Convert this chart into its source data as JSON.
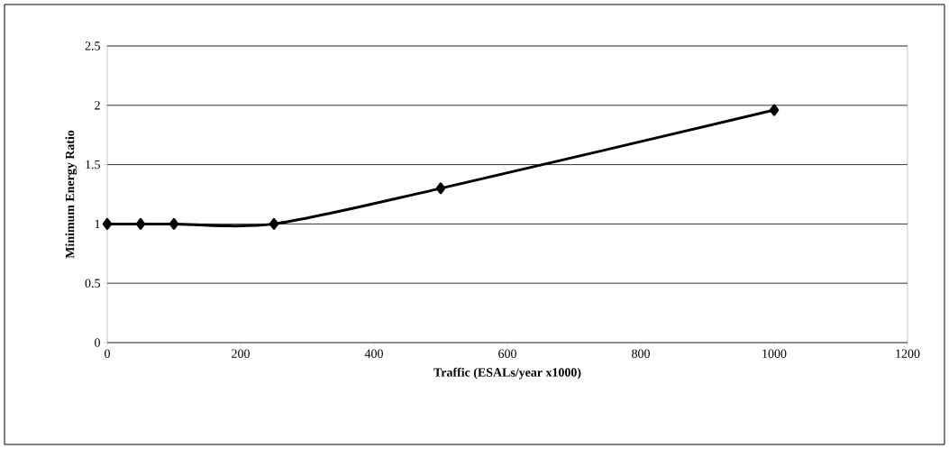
{
  "chart_data": {
    "type": "line",
    "xlabel": "Traffic (ESALs/year x1000)",
    "ylabel": "Minimum Energy Ratio",
    "x": [
      0,
      50,
      100,
      250,
      500,
      1000
    ],
    "values": [
      1,
      1,
      1,
      1,
      1.3,
      1.96
    ],
    "color": "#000000",
    "xlim": [
      0,
      1200
    ],
    "ylim": [
      0,
      2.5
    ],
    "xticks": [
      0,
      200,
      400,
      600,
      800,
      1000,
      1200
    ],
    "yticks": [
      0,
      0.5,
      1,
      1.5,
      2,
      2.5
    ],
    "grid": "y",
    "marker": "diamond",
    "line_style": "solid"
  }
}
